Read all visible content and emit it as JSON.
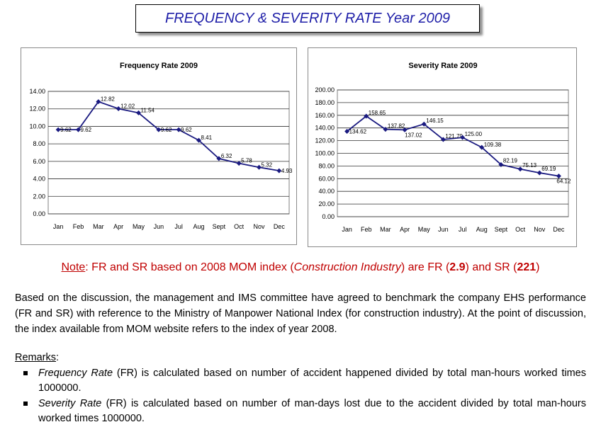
{
  "header": {
    "title": "FREQUENCY & SEVERITY RATE Year 2009",
    "title_color": "#1f1fa8"
  },
  "chart_data": [
    {
      "type": "line",
      "title": "Frequency Rate 2009",
      "categories": [
        "Jan",
        "Feb",
        "Mar",
        "Apr",
        "May",
        "Jun",
        "Jul",
        "Aug",
        "Sept",
        "Oct",
        "Nov",
        "Dec"
      ],
      "values": [
        9.62,
        9.62,
        12.82,
        12.02,
        11.54,
        9.62,
        9.62,
        8.41,
        6.32,
        5.78,
        5.32,
        4.93
      ],
      "data_labels": [
        "9.62",
        "9.62",
        "12.82",
        "12.02",
        "11.54",
        "9.62",
        "9.62",
        "8.41",
        "6.32",
        "5.78",
        "5.32",
        "4.93"
      ],
      "ylim": [
        0,
        14
      ],
      "yticks": [
        "0.00",
        "2.00",
        "4.00",
        "6.00",
        "8.00",
        "10.00",
        "12.00",
        "14.00"
      ],
      "grid": true,
      "color": "#1a1a80"
    },
    {
      "type": "line",
      "title": "Severity Rate 2009",
      "categories": [
        "Jan",
        "Feb",
        "Mar",
        "Apr",
        "May",
        "Jun",
        "Jul",
        "Aug",
        "Sept",
        "Oct",
        "Nov",
        "Dec"
      ],
      "values": [
        134.62,
        158.65,
        137.82,
        137.02,
        146.15,
        121.79,
        125.0,
        109.38,
        82.19,
        75.13,
        69.19,
        64.12
      ],
      "data_labels": [
        "134.62",
        "158.65",
        "137.82",
        "137.02",
        "146.15",
        "121.79",
        "125.00",
        "109.38",
        "82.19",
        "75.13",
        "69.19",
        "64.12"
      ],
      "ylim": [
        0,
        200
      ],
      "yticks": [
        "0.00",
        "20.00",
        "40.00",
        "60.00",
        "80.00",
        "100.00",
        "120.00",
        "140.00",
        "160.00",
        "180.00",
        "200.00"
      ],
      "grid": true,
      "color": "#1a1a80"
    }
  ],
  "note": {
    "prefix": "Note",
    "text1": ": FR and SR based on 2008 MOM index (",
    "industry": "Construction Industry",
    "text2": ") are FR (",
    "fr_value": "2.9",
    "text3": ") and SR (",
    "sr_value": "221",
    "text4": ")",
    "color": "#c00000"
  },
  "body": {
    "paragraph": "Based on the discussion, the management and IMS committee have agreed to benchmark the company EHS performance (FR and SR) with reference to the Ministry of Manpower National Index (for construction industry). At the point of discussion, the index available from MOM website refers to the index of year 2008."
  },
  "remarks": {
    "label": "Remarks",
    "colon": ":",
    "items": [
      {
        "term": "Frequency Rate",
        "text": " (FR) is calculated based on number of accident happened divided by total man-hours worked times 1000000."
      },
      {
        "term": "Severity Rate",
        "text": " (FR) is calculated based on number of man-days lost due to the accident divided by total man-hours worked times 1000000."
      }
    ]
  }
}
